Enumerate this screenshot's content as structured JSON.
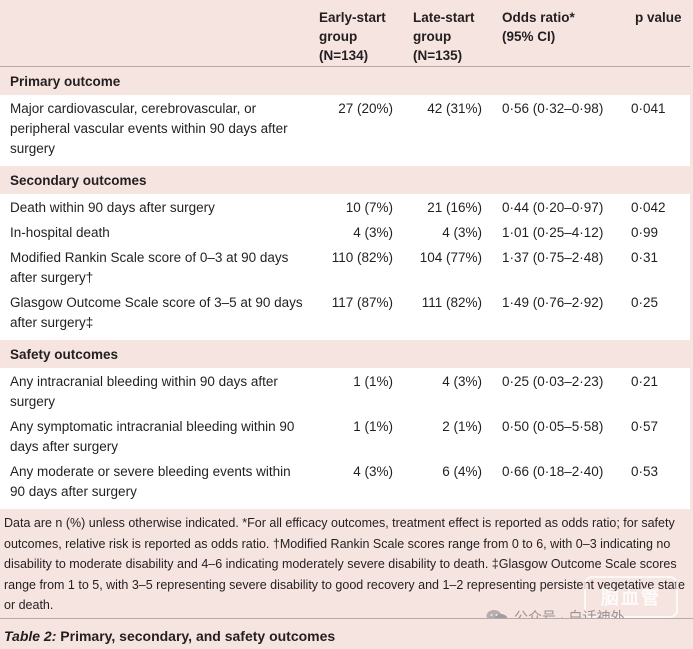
{
  "table": {
    "headers": {
      "outcome": "",
      "early": [
        "Early-start",
        "group",
        "(N=134)"
      ],
      "late": [
        "Late-start",
        "group",
        "(N=135)"
      ],
      "odds": [
        "Odds ratio*",
        "(95% CI)"
      ],
      "p": "p value"
    },
    "sections": [
      {
        "title": "Primary outcome",
        "rows": [
          {
            "label": "Major cardiovascular, cerebrovascular, or peripheral vascular events within 90 days after surgery",
            "early": "27 (20%)",
            "late": "42 (31%)",
            "or": "0·56 (0·32–0·98)",
            "p": "0·041"
          }
        ]
      },
      {
        "title": "Secondary outcomes",
        "rows": [
          {
            "label": "Death within 90 days after surgery",
            "early": "10 (7%)",
            "late": "21 (16%)",
            "or": "0·44 (0·20–0·97)",
            "p": "0·042"
          },
          {
            "label": "In-hospital death",
            "early": "4 (3%)",
            "late": "4 (3%)",
            "or": "1·01 (0·25–4·12)",
            "p": "0·99"
          },
          {
            "label": "Modified Rankin Scale score of 0–3 at 90 days after surgery†",
            "early": "110 (82%)",
            "late": "104 (77%)",
            "or": "1·37 (0·75–2·48)",
            "p": "0·31"
          },
          {
            "label": "Glasgow Outcome Scale score of 3–5 at 90 days after surgery‡",
            "early": "117 (87%)",
            "late": "111 (82%)",
            "or": "1·49 (0·76–2·92)",
            "p": "0·25"
          }
        ]
      },
      {
        "title": "Safety outcomes",
        "rows": [
          {
            "label": "Any intracranial bleeding within 90 days after surgery",
            "early": "1 (1%)",
            "late": "4 (3%)",
            "or": "0·25 (0·03–2·23)",
            "p": "0·21"
          },
          {
            "label": "Any symptomatic intracranial bleeding within 90 days after surgery",
            "early": "1 (1%)",
            "late": "2 (1%)",
            "or": "0·50 (0·05–5·58)",
            "p": "0·57"
          },
          {
            "label": "Any moderate or severe bleeding events within 90 days after surgery",
            "early": "4 (3%)",
            "late": "6 (4%)",
            "or": "0·66 (0·18–2·40)",
            "p": "0·53"
          }
        ]
      }
    ]
  },
  "footnote": "Data are n (%) unless otherwise indicated. *For all efficacy outcomes, treatment effect is reported as odds ratio; for safety outcomes, relative risk is reported as odds ratio. †Modified Rankin Scale scores range from 0 to 6, with 0–3 indicating no disability to moderate disability and 4–6 indicating moderately severe disability to death. ‡Glasgow Outcome Scale scores range from 1 to 5, with 3–5 representing severe disability to good recovery and 1–2 representing persistent vegetative state or death.",
  "caption": {
    "label": "Table 2:",
    "text": " Primary, secondary, and safety outcomes"
  },
  "watermark": {
    "text": "公众号 · 白话神外",
    "icon": "wechat-icon",
    "stamp": "脑血管"
  },
  "colors": {
    "background": "#f6e4e1",
    "row_background": "#ffffff",
    "text": "#231f20",
    "rule": "#b9a9a6"
  }
}
